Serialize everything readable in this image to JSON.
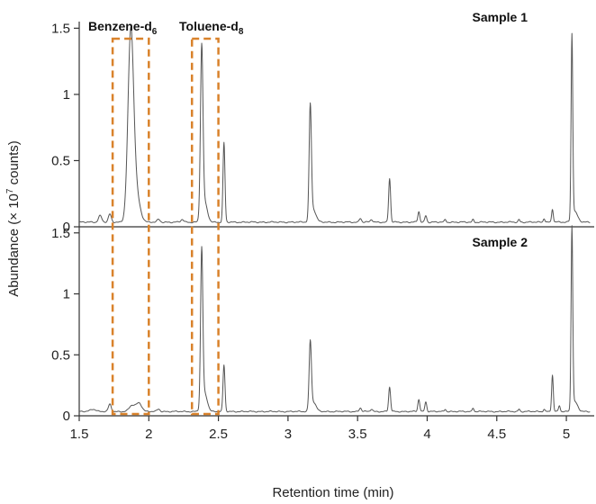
{
  "chart_data": {
    "type": "line",
    "xlabel": "Retention time (min)",
    "ylabel_parts": {
      "pre": "Abundance (× 10",
      "sup": "7",
      "post": " counts)"
    },
    "xlim": [
      1.5,
      5.2
    ],
    "x_ticks": [
      "1.5",
      "2",
      "2.5",
      "3",
      "3.5",
      "4",
      "4.5",
      "5"
    ],
    "x_tick_values": [
      1.5,
      2,
      2.5,
      3,
      3.5,
      4,
      4.5,
      5
    ],
    "y_ticks": [
      "0",
      "0.5",
      "1",
      "1.5"
    ],
    "y_tick_values": [
      0,
      0.5,
      1,
      1.5
    ],
    "ylim": [
      0,
      1.55
    ],
    "line_color": "#555555",
    "box_color": "#d9822b",
    "compound_labels": [
      {
        "base": "Benzene-d",
        "sub": "6"
      },
      {
        "base": "Toluene-d",
        "sub": "8"
      }
    ],
    "highlight_ranges": [
      [
        1.74,
        2.0
      ],
      [
        2.31,
        2.5
      ]
    ],
    "baseline": 0.035,
    "panels": [
      {
        "name": "Sample 1",
        "peaks": [
          {
            "x": 1.65,
            "h": 0.05,
            "w": 0.012
          },
          {
            "x": 1.72,
            "h": 0.06,
            "w": 0.01
          },
          {
            "x": 1.87,
            "h": 1.32,
            "w": 0.02
          },
          {
            "x": 1.9,
            "h": 0.25,
            "w": 0.03
          },
          {
            "x": 2.07,
            "h": 0.02,
            "w": 0.01
          },
          {
            "x": 2.24,
            "h": 0.02,
            "w": 0.01
          },
          {
            "x": 2.38,
            "h": 1.26,
            "w": 0.009
          },
          {
            "x": 2.4,
            "h": 0.15,
            "w": 0.02
          },
          {
            "x": 2.54,
            "h": 0.6,
            "w": 0.007
          },
          {
            "x": 3.16,
            "h": 0.84,
            "w": 0.008
          },
          {
            "x": 3.18,
            "h": 0.1,
            "w": 0.02
          },
          {
            "x": 3.52,
            "h": 0.03,
            "w": 0.008
          },
          {
            "x": 3.6,
            "h": 0.02,
            "w": 0.008
          },
          {
            "x": 3.73,
            "h": 0.33,
            "w": 0.007
          },
          {
            "x": 3.94,
            "h": 0.08,
            "w": 0.007
          },
          {
            "x": 3.99,
            "h": 0.05,
            "w": 0.007
          },
          {
            "x": 4.13,
            "h": 0.02,
            "w": 0.006
          },
          {
            "x": 4.33,
            "h": 0.02,
            "w": 0.006
          },
          {
            "x": 4.66,
            "h": 0.02,
            "w": 0.006
          },
          {
            "x": 4.84,
            "h": 0.03,
            "w": 0.006
          },
          {
            "x": 4.9,
            "h": 0.1,
            "w": 0.006
          },
          {
            "x": 5.04,
            "h": 1.38,
            "w": 0.006
          },
          {
            "x": 5.06,
            "h": 0.08,
            "w": 0.02
          }
        ]
      },
      {
        "name": "Sample 2",
        "peaks": [
          {
            "x": 1.6,
            "h": 0.02,
            "w": 0.02
          },
          {
            "x": 1.72,
            "h": 0.06,
            "w": 0.01
          },
          {
            "x": 1.88,
            "h": 0.05,
            "w": 0.02
          },
          {
            "x": 1.93,
            "h": 0.07,
            "w": 0.02
          },
          {
            "x": 2.07,
            "h": 0.02,
            "w": 0.01
          },
          {
            "x": 2.38,
            "h": 1.26,
            "w": 0.008
          },
          {
            "x": 2.4,
            "h": 0.15,
            "w": 0.02
          },
          {
            "x": 2.54,
            "h": 0.38,
            "w": 0.007
          },
          {
            "x": 3.16,
            "h": 0.54,
            "w": 0.008
          },
          {
            "x": 3.18,
            "h": 0.08,
            "w": 0.02
          },
          {
            "x": 3.52,
            "h": 0.03,
            "w": 0.008
          },
          {
            "x": 3.6,
            "h": 0.02,
            "w": 0.008
          },
          {
            "x": 3.73,
            "h": 0.2,
            "w": 0.007
          },
          {
            "x": 3.94,
            "h": 0.1,
            "w": 0.007
          },
          {
            "x": 3.99,
            "h": 0.08,
            "w": 0.007
          },
          {
            "x": 4.13,
            "h": 0.02,
            "w": 0.006
          },
          {
            "x": 4.33,
            "h": 0.03,
            "w": 0.006
          },
          {
            "x": 4.66,
            "h": 0.02,
            "w": 0.006
          },
          {
            "x": 4.84,
            "h": 0.02,
            "w": 0.006
          },
          {
            "x": 4.9,
            "h": 0.3,
            "w": 0.006
          },
          {
            "x": 4.95,
            "h": 0.05,
            "w": 0.006
          },
          {
            "x": 5.04,
            "h": 1.48,
            "w": 0.006
          },
          {
            "x": 5.06,
            "h": 0.08,
            "w": 0.02
          }
        ]
      }
    ]
  }
}
